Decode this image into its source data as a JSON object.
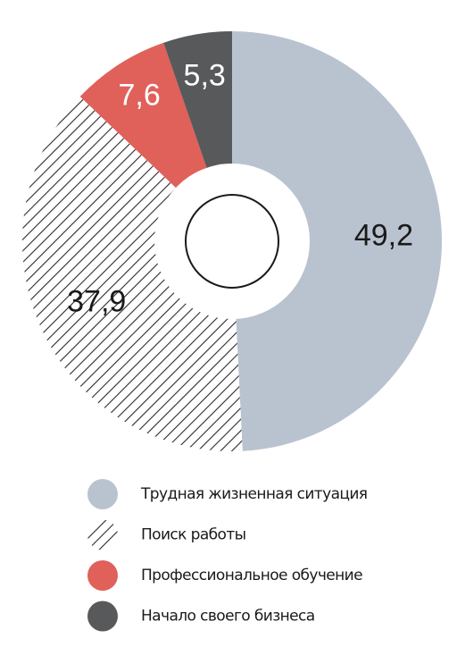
{
  "chart_data": {
    "type": "donut",
    "categories": [
      "Трудная жизненная ситуация",
      "Поиск работы",
      "Профессиональное обучение",
      "Начало своего бизнеса"
    ],
    "values": [
      49.2,
      37.9,
      7.6,
      5.3
    ],
    "value_labels": [
      "49,2",
      "37,9",
      "7,6",
      "5,3"
    ],
    "colors": [
      "#b9c3d0",
      "#2b2b2b",
      "#e0605a",
      "#58595b"
    ],
    "fills": [
      "solid",
      "hatch",
      "solid",
      "solid"
    ]
  }
}
